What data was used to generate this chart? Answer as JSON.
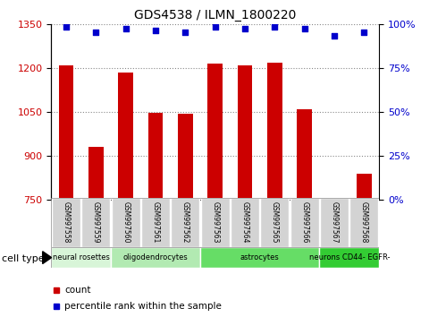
{
  "title": "GDS4538 / ILMN_1800220",
  "samples": [
    "GSM997558",
    "GSM997559",
    "GSM997560",
    "GSM997561",
    "GSM997562",
    "GSM997563",
    "GSM997564",
    "GSM997565",
    "GSM997566",
    "GSM997567",
    "GSM997568"
  ],
  "counts": [
    1207,
    930,
    1183,
    1047,
    1044,
    1213,
    1207,
    1218,
    1060,
    755,
    840
  ],
  "percentiles": [
    98,
    95,
    97,
    96,
    95,
    98,
    97,
    98,
    97,
    93,
    95
  ],
  "ylim_left": [
    750,
    1350
  ],
  "ylim_right": [
    0,
    100
  ],
  "yticks_left": [
    750,
    900,
    1050,
    1200,
    1350
  ],
  "yticks_right": [
    0,
    25,
    50,
    75,
    100
  ],
  "cell_types": [
    {
      "label": "neural rosettes",
      "start": 0,
      "end": 2,
      "color": "#d8f5d8"
    },
    {
      "label": "oligodendrocytes",
      "start": 2,
      "end": 5,
      "color": "#b2eab2"
    },
    {
      "label": "astrocytes",
      "start": 5,
      "end": 9,
      "color": "#66dd66"
    },
    {
      "label": "neurons CD44- EGFR-",
      "start": 9,
      "end": 11,
      "color": "#33cc33"
    }
  ],
  "bar_color": "#cc0000",
  "dot_color": "#0000cc",
  "bar_width": 0.5,
  "tick_label_color_left": "#cc0000",
  "tick_label_color_right": "#0000cc",
  "sample_box_color": "#d3d3d3",
  "cell_type_label": "cell type",
  "legend_count_label": "count",
  "legend_pct_label": "percentile rank within the sample"
}
